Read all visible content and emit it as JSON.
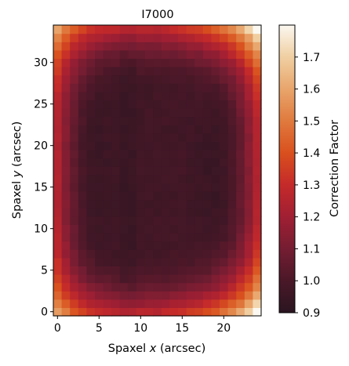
{
  "chart_data": {
    "type": "heatmap",
    "title": "I7000",
    "xlabel_prefix": "Spaxel ",
    "xlabel_var": "x",
    "xlabel_suffix": " (arcsec)",
    "ylabel_prefix": "Spaxel ",
    "ylabel_var": "y",
    "ylabel_suffix": " (arcsec)",
    "colorbar_label": "Correction Factor",
    "xlim": [
      -0.5,
      24.5
    ],
    "ylim": [
      -0.5,
      34.5
    ],
    "x_ticks": [
      0,
      5,
      10,
      15,
      20
    ],
    "y_ticks": [
      0,
      5,
      10,
      15,
      20,
      25,
      30
    ],
    "color_range": [
      0.9,
      1.8
    ],
    "colorbar_ticks": [
      "0.9",
      "1.0",
      "1.1",
      "1.2",
      "1.3",
      "1.4",
      "1.5",
      "1.6",
      "1.7"
    ],
    "colormap_stops": [
      "#2a1520",
      "#4a1828",
      "#751d32",
      "#a01f33",
      "#c42a2a",
      "#d9501e",
      "#e07a3e",
      "#e8a56c",
      "#f0cfa2",
      "#fbf8f1"
    ],
    "grid_cols": 25,
    "grid_rows": 35,
    "grid_note": "values read approx: ~0.95-1.05 in interior, rising to ~1.2-1.35 along top/bottom edges and ~1.75 in top-right and bottom-right corners"
  }
}
